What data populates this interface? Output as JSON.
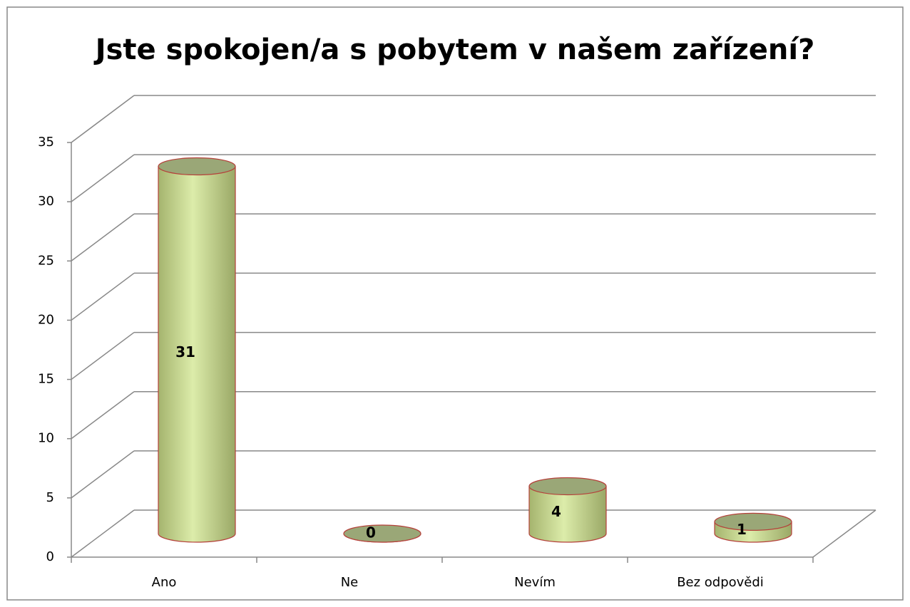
{
  "chart_data": {
    "type": "bar3d-cylinder",
    "title": "Jste spokojen/a s pobytem v našem zařízení?",
    "categories": [
      "Ano",
      "Ne",
      "Nevím",
      "Bez odpovědi"
    ],
    "values": [
      31,
      0,
      4,
      1
    ],
    "color": "#c9dd96",
    "ylim": [
      0,
      35
    ],
    "yticks": [
      0,
      5,
      10,
      15,
      20,
      25,
      30,
      35
    ],
    "grid": true
  }
}
